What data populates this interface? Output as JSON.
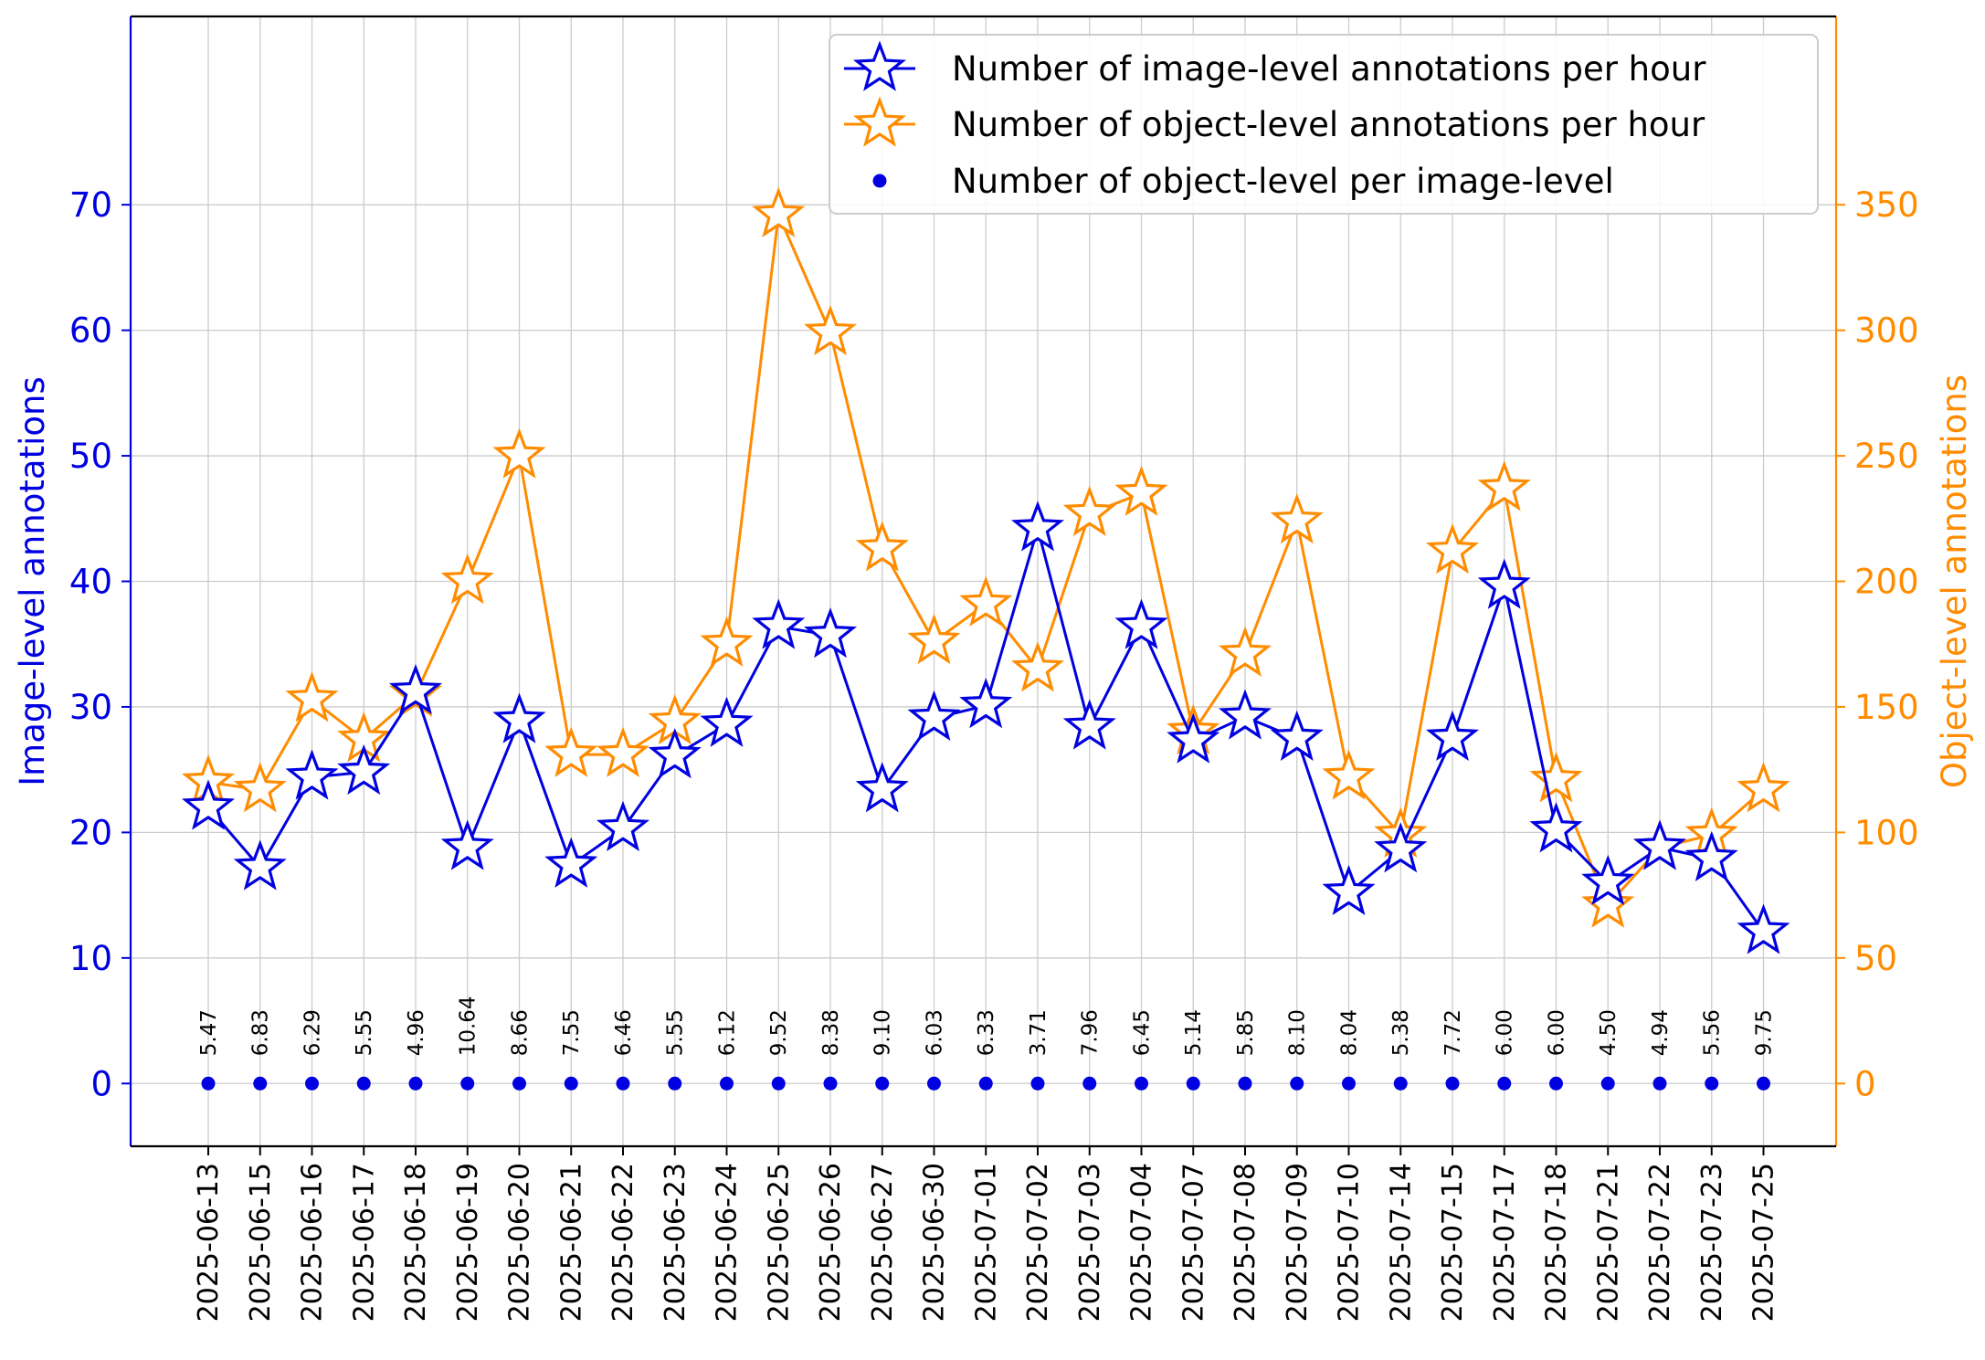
{
  "chart_data": {
    "type": "line",
    "title": "",
    "xlabel": "",
    "ylabel": "Image-level annotations",
    "ylabel_right": "Object-level annotations",
    "x": [
      "2025-06-13",
      "2025-06-15",
      "2025-06-16",
      "2025-06-17",
      "2025-06-18",
      "2025-06-19",
      "2025-06-20",
      "2025-06-21",
      "2025-06-22",
      "2025-06-23",
      "2025-06-24",
      "2025-06-25",
      "2025-06-26",
      "2025-06-27",
      "2025-06-30",
      "2025-07-01",
      "2025-07-02",
      "2025-07-03",
      "2025-07-04",
      "2025-07-07",
      "2025-07-08",
      "2025-07-09",
      "2025-07-10",
      "2025-07-14",
      "2025-07-15",
      "2025-07-17",
      "2025-07-18",
      "2025-07-21",
      "2025-07-22",
      "2025-07-23",
      "2025-07-25"
    ],
    "ylim": [
      -5,
      85
    ],
    "ylim_right": [
      -25,
      425
    ],
    "yticks": [
      0,
      10,
      20,
      30,
      40,
      50,
      60,
      70
    ],
    "yticks_right": [
      0,
      50,
      100,
      150,
      200,
      250,
      300,
      350
    ],
    "grid": true,
    "legend_position": "upper right",
    "series": [
      {
        "name": "Number of image-level annotations per hour",
        "axis": "left",
        "marker": "star",
        "color": "#0000e0",
        "values": [
          22.0,
          17.2,
          24.4,
          24.8,
          31.2,
          18.8,
          28.9,
          17.4,
          20.3,
          26.1,
          28.6,
          36.4,
          35.7,
          23.4,
          29.1,
          30.1,
          44.2,
          28.4,
          36.4,
          27.3,
          29.2,
          27.5,
          15.2,
          18.6,
          27.5,
          39.6,
          20.2,
          16.0,
          18.8,
          17.9,
          12.1
        ]
      },
      {
        "name": "Number of object-level annotations per hour",
        "axis": "right",
        "marker": "star",
        "color": "#ff8c00",
        "values": [
          120,
          117,
          153,
          137,
          155,
          200,
          250,
          131,
          131,
          144,
          175,
          346,
          299,
          213,
          176,
          191,
          165,
          227,
          235,
          140,
          171,
          224,
          122,
          99,
          212,
          237,
          121,
          71,
          94,
          99,
          117
        ]
      },
      {
        "name": "Number of object-level per image-level",
        "axis": "left",
        "marker": "dot",
        "color": "#0000e0",
        "values": [
          5.47,
          6.83,
          6.29,
          5.55,
          4.96,
          10.64,
          8.66,
          7.55,
          6.46,
          5.55,
          6.12,
          9.52,
          8.38,
          9.1,
          6.03,
          6.33,
          3.71,
          7.96,
          6.45,
          5.14,
          5.85,
          8.1,
          8.04,
          5.38,
          7.72,
          6.0,
          6.0,
          4.5,
          4.94,
          5.56,
          9.75
        ],
        "point_labels": [
          "5.47",
          "6.83",
          "6.29",
          "5.55",
          "4.96",
          "10.64",
          "8.66",
          "7.55",
          "6.46",
          "5.55",
          "6.12",
          "9.52",
          "8.38",
          "9.10",
          "6.03",
          "6.33",
          "3.71",
          "7.96",
          "6.45",
          "5.14",
          "5.85",
          "8.10",
          "8.04",
          "5.38",
          "7.72",
          "6.00",
          "6.00",
          "4.50",
          "4.94",
          "5.56",
          "9.75"
        ]
      }
    ],
    "colors": {
      "left_axis": "#0000e0",
      "right_axis": "#ff8c00",
      "grid": "#cccccc",
      "frame": "#000000"
    }
  }
}
